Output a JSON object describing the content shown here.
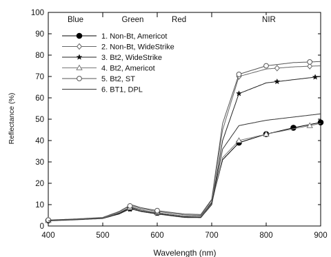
{
  "chart_data": {
    "type": "line",
    "xlabel": "Wavelength (nm)",
    "ylabel": "Reflectance (%)",
    "xlim": [
      400,
      900
    ],
    "ylim": [
      0,
      100
    ],
    "xticks": [
      400,
      500,
      600,
      700,
      800,
      900
    ],
    "yticks": [
      0,
      10,
      20,
      30,
      40,
      50,
      60,
      70,
      80,
      90,
      100
    ],
    "grid": false,
    "legend_position": "upper-left",
    "bands": [
      {
        "label": "Blue",
        "center": 450,
        "end": 500
      },
      {
        "label": "Green",
        "center": 555,
        "end": 600
      },
      {
        "label": "Red",
        "center": 640,
        "end": 700
      },
      {
        "label": "NIR",
        "center": 805,
        "end": null
      }
    ],
    "series": [
      {
        "name": "1. Non-Bt, Americot",
        "marker": "filled-circle",
        "color": "#000000",
        "x": [
          400,
          450,
          500,
          530,
          545,
          555,
          570,
          600,
          650,
          680,
          700,
          720,
          750,
          800,
          850,
          900
        ],
        "y": [
          2.6,
          3.0,
          3.7,
          6.0,
          8.0,
          8.5,
          7.5,
          6.2,
          4.6,
          4.5,
          11,
          31,
          39,
          43,
          46,
          48.5
        ],
        "marker_x": [
          400,
          550,
          600,
          750,
          800,
          850,
          900
        ]
      },
      {
        "name": "2. Non-Bt, WideStrike",
        "marker": "open-diamond",
        "color": "#666666",
        "x": [
          400,
          450,
          500,
          530,
          545,
          555,
          570,
          600,
          650,
          680,
          700,
          720,
          750,
          800,
          850,
          900
        ],
        "y": [
          2.7,
          3.2,
          3.9,
          6.6,
          8.8,
          9.4,
          8.2,
          6.8,
          5.2,
          5.0,
          12,
          45,
          70,
          73.5,
          74.5,
          75
        ],
        "marker_x": [
          400,
          550,
          600,
          750,
          820,
          880
        ]
      },
      {
        "name": "3. Bt2, WideStrike",
        "marker": "filled-star",
        "color": "#222222",
        "x": [
          400,
          450,
          500,
          530,
          545,
          555,
          570,
          600,
          650,
          680,
          700,
          720,
          750,
          800,
          850,
          900
        ],
        "y": [
          2.5,
          3.0,
          3.6,
          5.8,
          7.6,
          8.0,
          7.0,
          5.8,
          4.2,
          4.1,
          10,
          40,
          62,
          67,
          68.5,
          70
        ],
        "marker_x": [
          400,
          550,
          600,
          750,
          820,
          890
        ]
      },
      {
        "name": "4. Bt2, Americot",
        "marker": "open-triangle",
        "color": "#777777",
        "x": [
          400,
          450,
          500,
          530,
          545,
          555,
          570,
          600,
          650,
          680,
          700,
          720,
          750,
          800,
          850,
          900
        ],
        "y": [
          2.6,
          3.1,
          3.7,
          6.2,
          8.2,
          8.8,
          7.6,
          6.2,
          4.6,
          4.4,
          10.5,
          32,
          40,
          43,
          45.5,
          48
        ],
        "marker_x": [
          400,
          550,
          600,
          750,
          800,
          880
        ]
      },
      {
        "name": "5. Bt2, ST",
        "marker": "open-circle",
        "color": "#555555",
        "x": [
          400,
          450,
          500,
          530,
          545,
          555,
          570,
          600,
          650,
          680,
          700,
          720,
          750,
          800,
          850,
          900
        ],
        "y": [
          2.8,
          3.3,
          4.0,
          6.8,
          9.0,
          9.8,
          8.6,
          7.2,
          5.6,
          5.4,
          12.5,
          48,
          71,
          75,
          76.5,
          77
        ],
        "marker_x": [
          400,
          550,
          600,
          750,
          800,
          880
        ]
      },
      {
        "name": "6. BT1, DPL",
        "marker": "none",
        "color": "#333333",
        "x": [
          400,
          450,
          500,
          530,
          545,
          555,
          570,
          600,
          650,
          680,
          700,
          720,
          750,
          800,
          850,
          900
        ],
        "y": [
          2.4,
          2.9,
          3.5,
          5.6,
          7.4,
          7.8,
          6.8,
          5.6,
          4.0,
          3.9,
          10,
          36,
          47,
          49.5,
          51,
          52.5
        ],
        "marker_x": []
      }
    ]
  }
}
